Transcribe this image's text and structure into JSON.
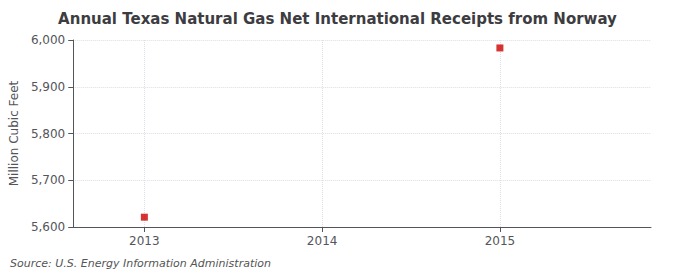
{
  "chart_data": {
    "type": "scatter",
    "title": "Annual Texas Natural Gas Net International Receipts from Norway",
    "ylabel": "Million Cubic Feet",
    "source": "Source: U.S. Energy Information Administration",
    "x": [
      2013,
      2015
    ],
    "values": [
      5621,
      5983
    ],
    "xlim": [
      2012.6,
      2015.85
    ],
    "ylim": [
      5600,
      6000
    ],
    "xticks": [
      2013,
      2014,
      2015
    ],
    "yticks": [
      {
        "value": 5600,
        "label": "5,600"
      },
      {
        "value": 5700,
        "label": "5,700"
      },
      {
        "value": 5800,
        "label": "5,800"
      },
      {
        "value": 5900,
        "label": "5,900"
      },
      {
        "value": 6000,
        "label": "6,000"
      }
    ],
    "color": "#cc0000",
    "marker": "square",
    "grid": true
  }
}
